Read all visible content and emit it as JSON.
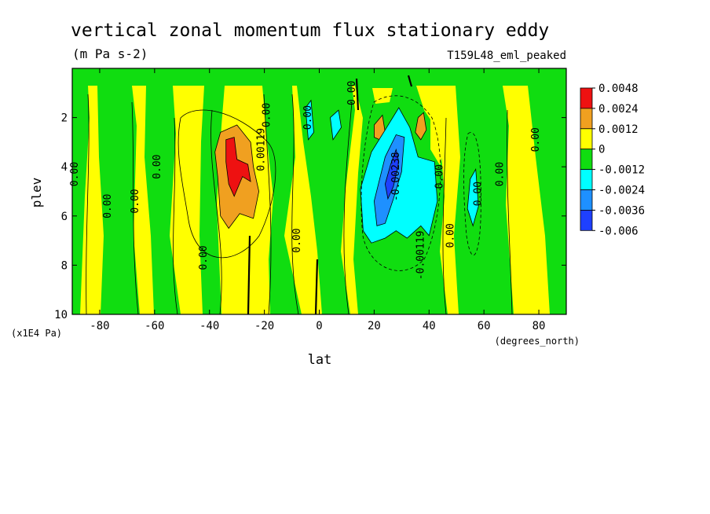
{
  "chart_data": {
    "type": "heatmap",
    "title": "vertical zonal momentum flux stationary eddy",
    "units": "(m Pa s-2)",
    "experiment": "T159L48_eml_peaked",
    "xlabel": "lat",
    "xunits": "(degrees_north)",
    "ylabel": "plev",
    "yunits": "(x1E4 Pa)",
    "xlim": [
      -90,
      90
    ],
    "ylim": [
      10,
      0
    ],
    "x_ticks": [
      -80,
      -60,
      -40,
      -20,
      0,
      20,
      40,
      60,
      80
    ],
    "y_ticks": [
      2,
      4,
      6,
      8,
      10
    ],
    "x_tick_labels": [
      "-80",
      "-60",
      "-40",
      "-20",
      "0",
      "20",
      "40",
      "60",
      "80"
    ],
    "y_tick_labels": [
      "2",
      "4",
      "6",
      "8",
      "10"
    ],
    "colorbar": {
      "labels": [
        "0.0048",
        "0.0024",
        "0.0012",
        "0",
        "-0.0012",
        "-0.0024",
        "-0.0036",
        "-0.006"
      ],
      "colors": [
        "#ee1111",
        "#f0a020",
        "#ffff00",
        "#10dd10",
        "#00ffff",
        "#1e90ff",
        "#1e40ff"
      ]
    },
    "contour_labels": [
      {
        "text": "0.00",
        "lat": -88,
        "plev": 4.3,
        "rot": -90
      },
      {
        "text": "0.00",
        "lat": -76,
        "plev": 5.6,
        "rot": -90
      },
      {
        "text": "0.00",
        "lat": -66,
        "plev": 5.4,
        "rot": -90
      },
      {
        "text": "0.00",
        "lat": -58,
        "plev": 4.0,
        "rot": -90
      },
      {
        "text": "0.00",
        "lat": -41,
        "plev": 7.7,
        "rot": -90
      },
      {
        "text": "0.00119",
        "lat": -20,
        "plev": 3.3,
        "rot": -90
      },
      {
        "text": "0.00",
        "lat": -18,
        "plev": 1.9,
        "rot": -90
      },
      {
        "text": "0.00",
        "lat": -7,
        "plev": 7.0,
        "rot": -90
      },
      {
        "text": "0.00",
        "lat": -3,
        "plev": 2.0,
        "rot": -90
      },
      {
        "text": "0.00",
        "lat": 13,
        "plev": 1.0,
        "rot": -90
      },
      {
        "text": "-0.00238",
        "lat": 29,
        "plev": 4.4,
        "rot": -90
      },
      {
        "text": "-0.00119",
        "lat": 38,
        "plev": 7.6,
        "rot": -90
      },
      {
        "text": "0.00",
        "lat": 45,
        "plev": 4.4,
        "rot": -90
      },
      {
        "text": "0.00",
        "lat": 49,
        "plev": 6.8,
        "rot": -90
      },
      {
        "text": "0.00",
        "lat": 59,
        "plev": 5.1,
        "rot": -90
      },
      {
        "text": "0.00",
        "lat": 67,
        "plev": 4.3,
        "rot": -90
      },
      {
        "text": "0.00",
        "lat": 80,
        "plev": 2.9,
        "rot": -90
      }
    ],
    "regions": [
      {
        "level": "0.0024",
        "points": [
          [
            -36,
            2.6
          ],
          [
            -30,
            2.3
          ],
          [
            -25,
            3.0
          ],
          [
            -24,
            4.0
          ],
          [
            -22,
            5.0
          ],
          [
            -24,
            6.1
          ],
          [
            -29,
            5.9
          ],
          [
            -33,
            6.5
          ],
          [
            -36,
            6.0
          ],
          [
            -37,
            4.4
          ],
          [
            -38,
            3.4
          ]
        ]
      },
      {
        "level": "0.0048",
        "points": [
          [
            -34,
            2.9
          ],
          [
            -31,
            2.8
          ],
          [
            -30,
            3.7
          ],
          [
            -26,
            3.9
          ],
          [
            -25,
            4.6
          ],
          [
            -28,
            4.4
          ],
          [
            -31,
            5.2
          ],
          [
            -33,
            4.7
          ],
          [
            -34,
            3.8
          ]
        ]
      },
      {
        "level": "0.0024",
        "points": [
          [
            20,
            2.3
          ],
          [
            23,
            1.9
          ],
          [
            24,
            2.6
          ],
          [
            22,
            2.9
          ],
          [
            20,
            2.8
          ]
        ]
      },
      {
        "level": "0.0024",
        "points": [
          [
            36,
            2.0
          ],
          [
            38,
            1.8
          ],
          [
            39,
            2.5
          ],
          [
            37,
            2.9
          ],
          [
            35,
            2.6
          ]
        ]
      },
      {
        "level": "-0.0024",
        "points": [
          [
            -5,
            1.6
          ],
          [
            -3,
            1.3
          ],
          [
            -2,
            2.6
          ],
          [
            -4,
            2.9
          ]
        ]
      },
      {
        "level": "-0.0024",
        "points": [
          [
            4,
            2.0
          ],
          [
            7,
            1.7
          ],
          [
            8,
            2.4
          ],
          [
            5,
            2.9
          ]
        ]
      },
      {
        "level": "-0.0024",
        "points": [
          [
            15,
            4.9
          ],
          [
            19,
            3.4
          ],
          [
            24,
            2.5
          ],
          [
            29,
            1.6
          ],
          [
            33,
            2.4
          ],
          [
            36,
            3.6
          ],
          [
            42,
            3.8
          ],
          [
            43,
            5.4
          ],
          [
            40,
            6.8
          ],
          [
            37,
            6.4
          ],
          [
            32,
            6.9
          ],
          [
            28,
            6.6
          ],
          [
            24,
            6.9
          ],
          [
            19,
            7.1
          ],
          [
            16,
            6.6
          ]
        ]
      },
      {
        "level": "-0.0036",
        "points": [
          [
            20,
            5.4
          ],
          [
            24,
            3.6
          ],
          [
            28,
            2.7
          ],
          [
            31,
            2.8
          ],
          [
            30,
            4.2
          ],
          [
            27,
            5.3
          ],
          [
            24,
            6.3
          ],
          [
            21,
            6.4
          ]
        ]
      },
      {
        "level": "-0.006",
        "points": [
          [
            24,
            4.7
          ],
          [
            26,
            3.9
          ],
          [
            28,
            3.3
          ],
          [
            29,
            3.8
          ],
          [
            27,
            4.8
          ],
          [
            25,
            5.3
          ]
        ]
      },
      {
        "level": "-0.0024",
        "points": [
          [
            55,
            4.5
          ],
          [
            57,
            4.1
          ],
          [
            58,
            5.6
          ],
          [
            56,
            6.4
          ],
          [
            54,
            5.7
          ]
        ]
      }
    ]
  }
}
